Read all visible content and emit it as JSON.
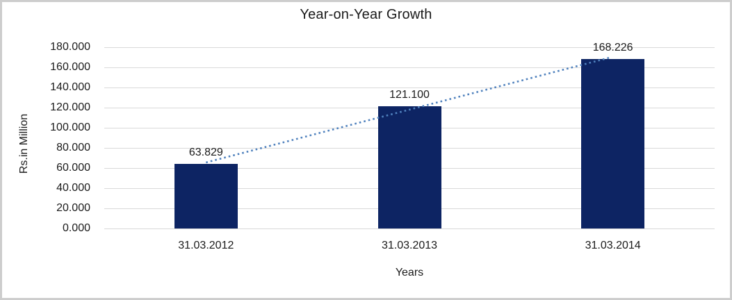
{
  "chart_data": {
    "type": "bar",
    "title": "Year-on-Year Growth",
    "xlabel": "Years",
    "ylabel": "Rs.in Million",
    "categories": [
      "31.03.2012",
      "31.03.2013",
      "31.03.2014"
    ],
    "values": [
      63.829,
      121.1,
      168.226
    ],
    "data_labels": [
      "63.829",
      "121.100",
      "168.226"
    ],
    "ylim": [
      0,
      180
    ],
    "ytick_step": 20,
    "ytick_labels": [
      "0.000",
      "20.000",
      "40.000",
      "60.000",
      "80.000",
      "100.000",
      "120.000",
      "140.000",
      "160.000",
      "180.000"
    ],
    "grid": true,
    "legend": "none",
    "trendline": {
      "type": "linear",
      "style": "dotted",
      "from_category": "31.03.2012",
      "to_category": "31.03.2014"
    },
    "colors": {
      "bar": "#0d2463",
      "trendline": "#4f81bd",
      "gridline": "#d9d9d9",
      "text": "#1a1a1a",
      "frame_border": "#cdcdcd",
      "background": "#ffffff"
    }
  }
}
